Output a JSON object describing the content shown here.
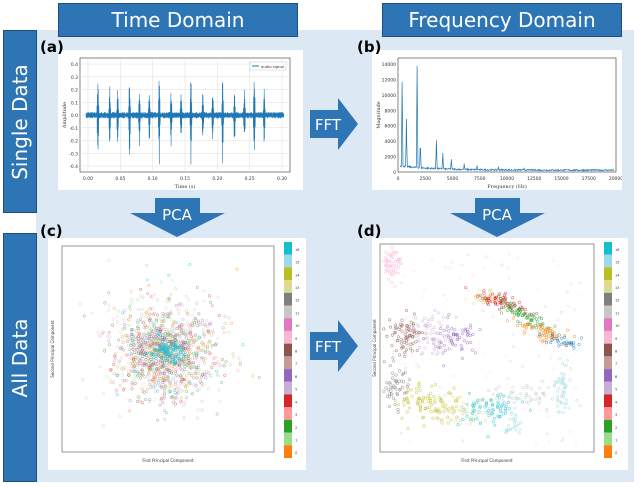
{
  "headers": {
    "time_domain": "Time Domain",
    "frequency_domain": "Frequency Domain"
  },
  "rows": {
    "single_data": "Single Data",
    "all_data": "All Data"
  },
  "panel_labels": {
    "a": "(a)",
    "b": "(b)",
    "c": "(c)",
    "d": "(d)"
  },
  "arrows": {
    "fft_top": "FFT",
    "fft_bottom": "FFT",
    "pca_left": "PCA",
    "pca_right": "PCA"
  },
  "panel_a": {
    "ylabel": "Amplitude",
    "xlabel": "Time (s)",
    "legend": "audio signal",
    "yticks": [
      "0.4",
      "0.3",
      "0.2",
      "0.1",
      "0.0",
      "-0.1",
      "-0.2",
      "-0.3",
      "-0.4"
    ],
    "xticks": [
      "0.00",
      "0.05",
      "0.10",
      "0.15",
      "0.20",
      "0.25",
      "0.30"
    ]
  },
  "panel_b": {
    "ylabel": "Magnitude",
    "xlabel": "Frequency (Hz)",
    "yticks": [
      "14000",
      "12000",
      "10000",
      "8000",
      "6000",
      "4000",
      "2000",
      "0"
    ],
    "xticks": [
      "0",
      "2500",
      "5000",
      "7500",
      "10000",
      "12500",
      "15000",
      "17500",
      "20000"
    ]
  },
  "panel_c": {
    "xlabel": "First Principal Component",
    "ylabel": "Second Principal Component"
  },
  "panel_d": {
    "xlabel": "First Principal Component",
    "ylabel": "Second Principal Component"
  },
  "colorbar": {
    "labels": [
      "16",
      "15",
      "14",
      "13",
      "12",
      "11",
      "10",
      "9",
      "8",
      "7",
      "6",
      "5",
      "4",
      "3",
      "2",
      "1",
      "0"
    ],
    "colors": [
      "#17becf",
      "#9edae5",
      "#bcbd22",
      "#dbdb8d",
      "#7f7f7f",
      "#c7c7c7",
      "#e377c2",
      "#f7b6d2",
      "#8c564b",
      "#c49c94",
      "#9467bd",
      "#c5b0d5",
      "#d62728",
      "#ff9896",
      "#2ca02c",
      "#98df8a",
      "#ff7f0e"
    ]
  },
  "colors": {
    "header_blue": "#2e75b6",
    "signal_blue": "#1f77b4",
    "panel_bg": "#dce8f4"
  }
}
